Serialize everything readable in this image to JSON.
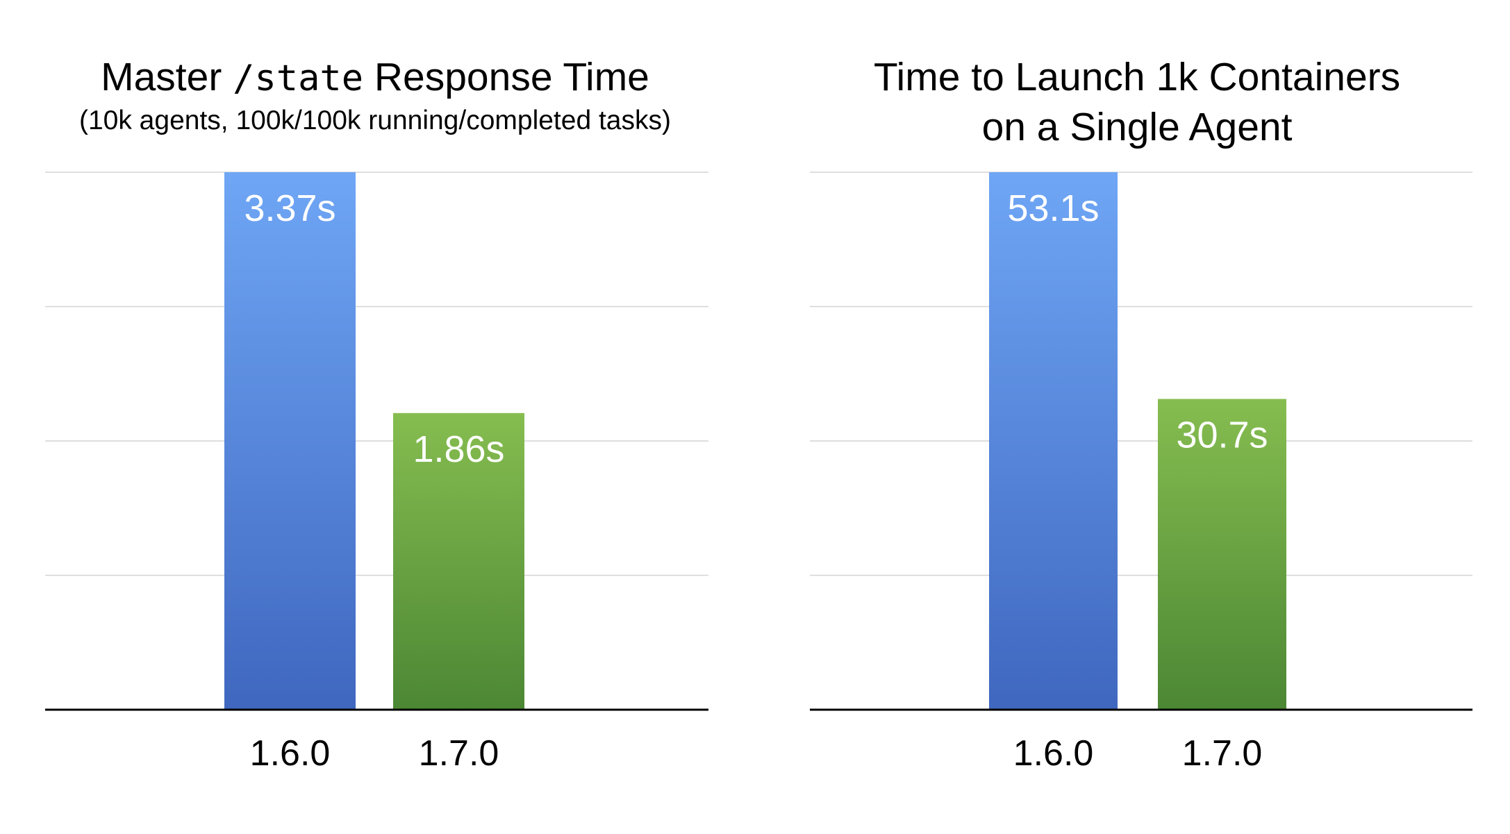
{
  "chart_data": [
    {
      "type": "bar",
      "title_prefix": "Master ",
      "title_code": "/state",
      "title_suffix": " Response Time",
      "subtitle": "(10k agents, 100k/100k running/completed tasks)",
      "categories": [
        "1.6.0",
        "1.7.0"
      ],
      "values": [
        3.37,
        1.86
      ],
      "data_labels": [
        "3.37s",
        "1.86s"
      ],
      "bar_colors": [
        [
          "#6fa6f5",
          "#3f67bf"
        ],
        [
          "#86bd50",
          "#4c8734"
        ]
      ],
      "ylim": [
        0,
        3.37
      ],
      "grid": true,
      "gridlines": 4
    },
    {
      "type": "bar",
      "title_line1": "Time to Launch 1k Containers",
      "title_line2": "on a Single Agent",
      "categories": [
        "1.6.0",
        "1.7.0"
      ],
      "values": [
        53.1,
        30.7
      ],
      "data_labels": [
        "53.1s",
        "30.7s"
      ],
      "bar_colors": [
        [
          "#6fa6f5",
          "#3f67bf"
        ],
        [
          "#86bd50",
          "#4c8734"
        ]
      ],
      "ylim": [
        0,
        53.1
      ],
      "grid": true,
      "gridlines": 4
    }
  ]
}
